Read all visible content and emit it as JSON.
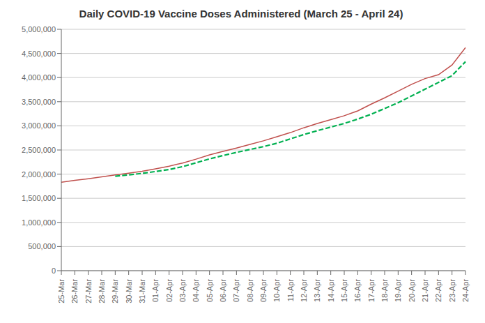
{
  "chart_data": {
    "type": "line",
    "title": "Daily COVID-19 Vaccine Doses Administered (March 25 - April 24)",
    "categories": [
      "25-Mar",
      "26-Mar",
      "27-Mar",
      "28-Mar",
      "29-Mar",
      "30-Mar",
      "31-Mar",
      "01-Apr",
      "02-Apr",
      "03-Apr",
      "04-Apr",
      "05-Apr",
      "06-Apr",
      "07-Apr",
      "08-Apr",
      "09-Apr",
      "10-Apr",
      "11-Apr",
      "12-Apr",
      "13-Apr",
      "14-Apr",
      "15-Apr",
      "16-Apr",
      "17-Apr",
      "18-Apr",
      "19-Apr",
      "20-Apr",
      "21-Apr",
      "22-Apr",
      "23-Apr",
      "24-Apr"
    ],
    "series": [
      {
        "color": "#C0504D",
        "line_style": "solid",
        "values": [
          1830000,
          1870000,
          1905000,
          1945000,
          1985000,
          2020000,
          2060000,
          2110000,
          2165000,
          2230000,
          2310000,
          2400000,
          2470000,
          2540000,
          2615000,
          2690000,
          2775000,
          2860000,
          2960000,
          3050000,
          3130000,
          3210000,
          3310000,
          3450000,
          3580000,
          3720000,
          3860000,
          3980000,
          4060000,
          4260000,
          4620000
        ]
      },
      {
        "color": "#00B050",
        "line_style": "dashed",
        "values": [
          null,
          null,
          null,
          null,
          1955000,
          1985000,
          2015000,
          2055000,
          2095000,
          2155000,
          2235000,
          2315000,
          2385000,
          2450000,
          2510000,
          2570000,
          2640000,
          2730000,
          2820000,
          2900000,
          2975000,
          3050000,
          3140000,
          3240000,
          3360000,
          3480000,
          3620000,
          3760000,
          3900000,
          4040000,
          4330000
        ]
      }
    ],
    "ylim": [
      0,
      5000000
    ],
    "yticks": [
      0,
      {
        "value": 500000,
        "label": "500,000"
      },
      {
        "value": 1000000,
        "label": "1,000,000"
      },
      {
        "value": 1500000,
        "label": "1,500,000"
      },
      {
        "value": 2000000,
        "label": "2,000,000"
      },
      {
        "value": 2500000,
        "label": "2,500,000"
      },
      {
        "value": 3000000,
        "label": "3,000,000"
      },
      {
        "value": 3500000,
        "label": "3,500,000"
      },
      {
        "value": 4000000,
        "label": "4,000,000"
      },
      {
        "value": 4500000,
        "label": "4,500,000"
      },
      {
        "value": 5000000,
        "label": "5,000,000"
      }
    ],
    "grid": true
  }
}
